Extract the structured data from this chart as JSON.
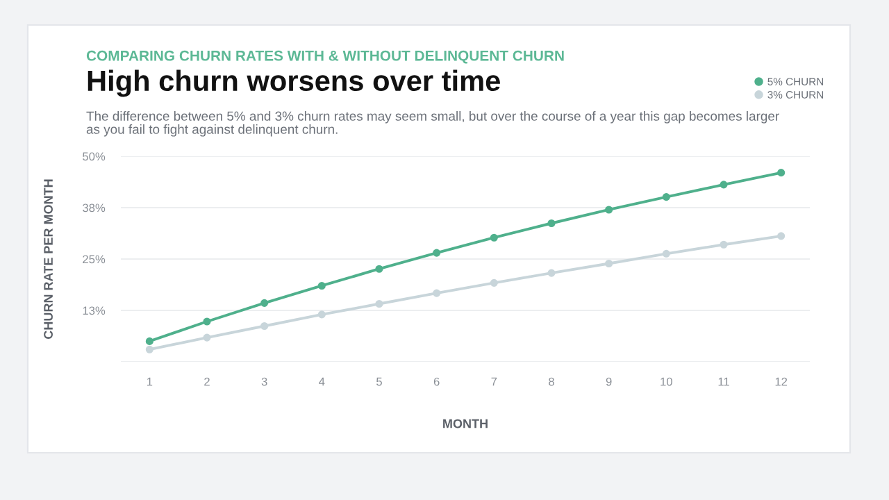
{
  "chart_data": {
    "type": "line",
    "subtitle": "COMPARING CHURN RATES WITH & WITHOUT DELINQUENT CHURN",
    "title": "High churn worsens over time",
    "annotations": [
      "The difference between 5% and 3% churn rates may seem small, but over the course of a year this gap becomes larger as you fail to fight against delinquent churn."
    ],
    "xlabel": "MONTH",
    "ylabel": "CHURN RATE PER MONTH",
    "x": [
      1,
      2,
      3,
      4,
      5,
      6,
      7,
      8,
      9,
      10,
      11,
      12
    ],
    "series": [
      {
        "name": "5% CHURN",
        "color": "#4fb08c",
        "values": [
          5.0,
          9.8,
          14.3,
          18.5,
          22.6,
          26.5,
          30.2,
          33.7,
          37.0,
          40.1,
          43.1,
          46.0
        ]
      },
      {
        "name": "3% CHURN",
        "color": "#c8d5da",
        "values": [
          3.0,
          5.9,
          8.7,
          11.5,
          14.1,
          16.7,
          19.2,
          21.6,
          23.9,
          26.3,
          28.5,
          30.6
        ]
      }
    ],
    "xlim": [
      0.5,
      12.5
    ],
    "xticks": [
      1,
      2,
      3,
      4,
      5,
      6,
      7,
      8,
      9,
      10,
      11,
      12
    ],
    "ylim": [
      0,
      50
    ],
    "yticks": [
      {
        "value": 0,
        "label": null
      },
      {
        "value": 12.5,
        "label": "13%"
      },
      {
        "value": 25,
        "label": "25%"
      },
      {
        "value": 37.5,
        "label": "38%"
      },
      {
        "value": 50,
        "label": "50%"
      }
    ],
    "grid": "y",
    "legend": "top right",
    "marker": "circle",
    "line_style": "solid"
  }
}
